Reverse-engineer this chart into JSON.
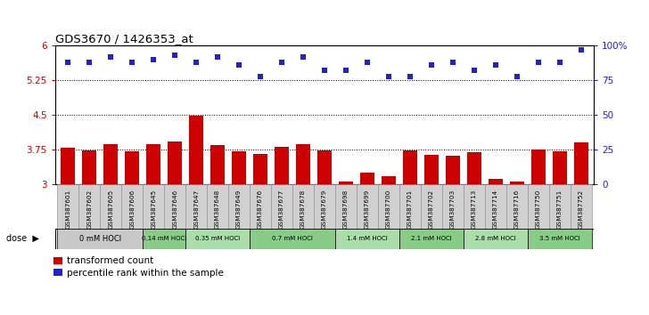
{
  "title": "GDS3670 / 1426353_at",
  "samples": [
    "GSM387601",
    "GSM387602",
    "GSM387605",
    "GSM387606",
    "GSM387645",
    "GSM387646",
    "GSM387647",
    "GSM387648",
    "GSM387649",
    "GSM387676",
    "GSM387677",
    "GSM387678",
    "GSM387679",
    "GSM387698",
    "GSM387699",
    "GSM387700",
    "GSM387701",
    "GSM387702",
    "GSM387703",
    "GSM387713",
    "GSM387714",
    "GSM387716",
    "GSM387750",
    "GSM387751",
    "GSM387752"
  ],
  "bar_values": [
    3.8,
    3.73,
    3.87,
    3.72,
    3.87,
    3.92,
    4.48,
    3.85,
    3.72,
    3.65,
    3.82,
    3.86,
    3.73,
    3.05,
    3.25,
    3.17,
    3.73,
    3.63,
    3.61,
    3.7,
    3.12,
    3.05,
    3.75,
    3.72,
    3.9
  ],
  "dot_values_pct": [
    88,
    88,
    92,
    88,
    90,
    93,
    88,
    92,
    86,
    78,
    88,
    92,
    82,
    82,
    88,
    78,
    78,
    86,
    88,
    82,
    86,
    78,
    88,
    88,
    97
  ],
  "ylim_left": [
    3.0,
    6.0
  ],
  "yticks_left": [
    3.0,
    3.75,
    4.5,
    5.25,
    6.0
  ],
  "yticks_right": [
    0,
    25,
    50,
    75,
    100
  ],
  "bar_color": "#cc0000",
  "dot_color": "#2222cc",
  "dot_size": 22,
  "groups": [
    {
      "label": "0 mM HOCl",
      "start": 0,
      "end": 4,
      "color": "#c8c8c8"
    },
    {
      "label": "0.14 mM HOCl",
      "start": 4,
      "end": 6,
      "color": "#88cc88"
    },
    {
      "label": "0.35 mM HOCl",
      "start": 6,
      "end": 9,
      "color": "#aaddaa"
    },
    {
      "label": "0.7 mM HOCl",
      "start": 9,
      "end": 13,
      "color": "#88cc88"
    },
    {
      "label": "1.4 mM HOCl",
      "start": 13,
      "end": 16,
      "color": "#aaddaa"
    },
    {
      "label": "2.1 mM HOCl",
      "start": 16,
      "end": 19,
      "color": "#88cc88"
    },
    {
      "label": "2.8 mM HOCl",
      "start": 19,
      "end": 22,
      "color": "#aaddaa"
    },
    {
      "label": "3.5 mM HOCl",
      "start": 22,
      "end": 25,
      "color": "#88cc88"
    }
  ]
}
